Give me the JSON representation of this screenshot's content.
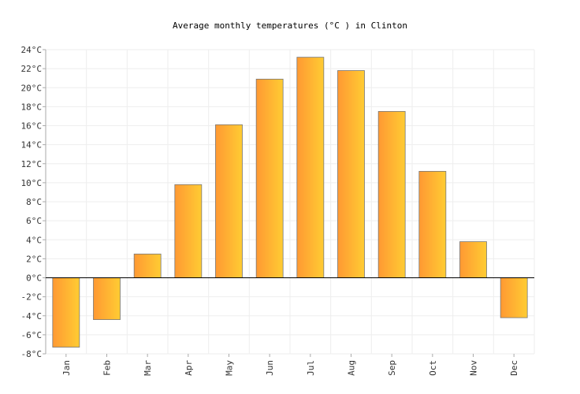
{
  "chart_data": {
    "type": "bar",
    "title": "Average monthly temperatures (°C ) in Clinton",
    "xlabel": "",
    "ylabel": "",
    "categories": [
      "Jan",
      "Feb",
      "Mar",
      "Apr",
      "May",
      "Jun",
      "Jul",
      "Aug",
      "Sep",
      "Oct",
      "Nov",
      "Dec"
    ],
    "values": [
      -7.3,
      -4.4,
      2.5,
      9.8,
      16.1,
      20.9,
      23.2,
      21.8,
      17.5,
      11.2,
      3.8,
      -4.2
    ],
    "ylim": [
      -8,
      24
    ],
    "ytick_step": 2,
    "ytick_suffix": "°C",
    "grid": true,
    "legend": "none",
    "colors": {
      "bar_start": "#ff9933",
      "bar_end": "#ffcc33",
      "bar_stroke": "#777777",
      "grid": "#eeeeee",
      "zero_line": "#000000",
      "axis": "#aaaaaa"
    }
  }
}
